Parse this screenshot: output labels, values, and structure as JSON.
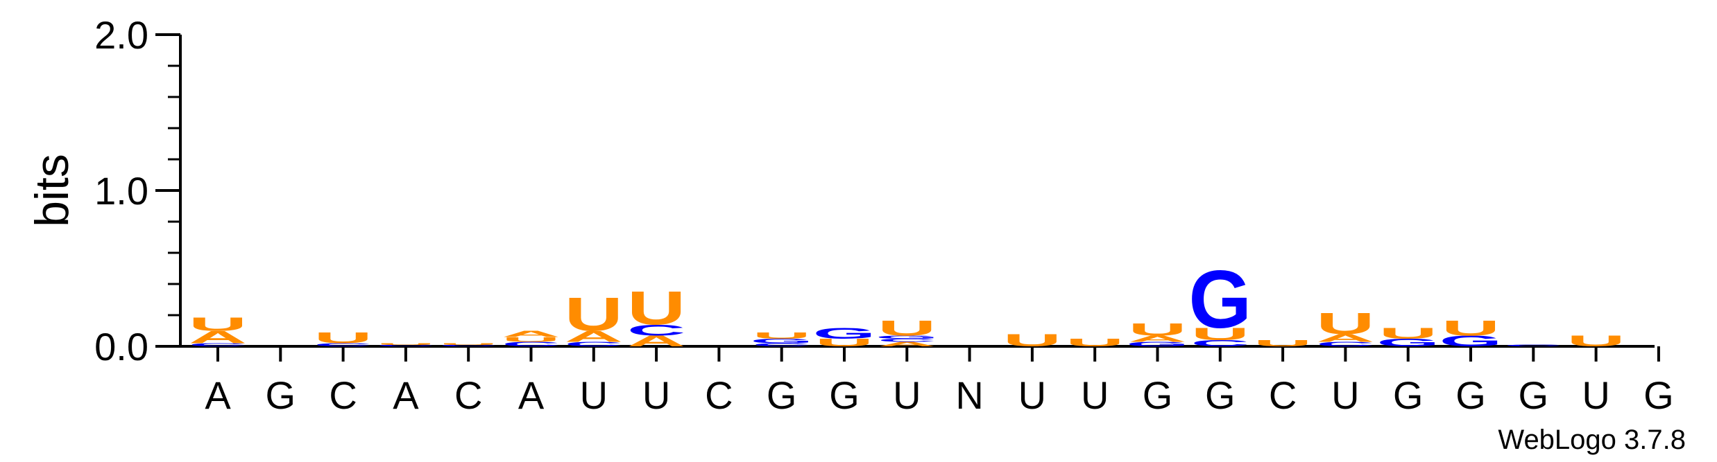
{
  "chart_data": {
    "type": "sequence-logo",
    "ylabel": "bits",
    "ylim": [
      0,
      2
    ],
    "yticks": [
      "0.0",
      "1.0",
      "2.0"
    ],
    "ytick_values": [
      0,
      1,
      2
    ],
    "credit": "WebLogo 3.7.8",
    "colors": {
      "A": "#ff8c00",
      "U": "#ff8c00",
      "G": "#0000ff",
      "C": "#0000ff",
      "N": "#ff8c00"
    },
    "positions": [
      {
        "label": "A",
        "stack": [
          {
            "letter": "C",
            "bits": 0.02
          },
          {
            "letter": "A",
            "bits": 0.08
          },
          {
            "letter": "U",
            "bits": 0.09
          }
        ]
      },
      {
        "label": "G",
        "stack": []
      },
      {
        "label": "C",
        "stack": [
          {
            "letter": "C",
            "bits": 0.02
          },
          {
            "letter": "U",
            "bits": 0.07
          }
        ]
      },
      {
        "label": "A",
        "stack": [
          {
            "letter": "C",
            "bits": 0.01
          },
          {
            "letter": "U",
            "bits": 0.01
          }
        ]
      },
      {
        "label": "C",
        "stack": [
          {
            "letter": "C",
            "bits": 0.01
          },
          {
            "letter": "U",
            "bits": 0.01
          }
        ]
      },
      {
        "label": "A",
        "stack": [
          {
            "letter": "C",
            "bits": 0.03
          },
          {
            "letter": "U",
            "bits": 0.03
          },
          {
            "letter": "A",
            "bits": 0.04
          }
        ]
      },
      {
        "label": "U",
        "stack": [
          {
            "letter": "C",
            "bits": 0.03
          },
          {
            "letter": "A",
            "bits": 0.07
          },
          {
            "letter": "U",
            "bits": 0.22
          }
        ]
      },
      {
        "label": "U",
        "stack": [
          {
            "letter": "A",
            "bits": 0.07
          },
          {
            "letter": "C",
            "bits": 0.07
          },
          {
            "letter": "U",
            "bits": 0.22
          }
        ]
      },
      {
        "label": "C",
        "stack": []
      },
      {
        "label": "G",
        "stack": [
          {
            "letter": "C",
            "bits": 0.02
          },
          {
            "letter": "G",
            "bits": 0.03
          },
          {
            "letter": "U",
            "bits": 0.04
          }
        ]
      },
      {
        "label": "G",
        "stack": [
          {
            "letter": "U",
            "bits": 0.05
          },
          {
            "letter": "G",
            "bits": 0.07
          }
        ]
      },
      {
        "label": "U",
        "stack": [
          {
            "letter": "A",
            "bits": 0.03
          },
          {
            "letter": "C",
            "bits": 0.02
          },
          {
            "letter": "G",
            "bits": 0.02
          },
          {
            "letter": "U",
            "bits": 0.1
          }
        ]
      },
      {
        "label": "N",
        "stack": []
      },
      {
        "label": "U",
        "stack": [
          {
            "letter": "U",
            "bits": 0.08
          }
        ]
      },
      {
        "label": "U",
        "stack": [
          {
            "letter": "U",
            "bits": 0.05
          }
        ]
      },
      {
        "label": "G",
        "stack": [
          {
            "letter": "G",
            "bits": 0.03
          },
          {
            "letter": "A",
            "bits": 0.04
          },
          {
            "letter": "U",
            "bits": 0.08
          }
        ]
      },
      {
        "label": "G",
        "stack": [
          {
            "letter": "C",
            "bits": 0.04
          },
          {
            "letter": "U",
            "bits": 0.08
          },
          {
            "letter": "G",
            "bits": 0.38
          }
        ]
      },
      {
        "label": "C",
        "stack": [
          {
            "letter": "U",
            "bits": 0.04
          }
        ]
      },
      {
        "label": "U",
        "stack": [
          {
            "letter": "C",
            "bits": 0.03
          },
          {
            "letter": "A",
            "bits": 0.05
          },
          {
            "letter": "U",
            "bits": 0.14
          }
        ]
      },
      {
        "label": "G",
        "stack": [
          {
            "letter": "G",
            "bits": 0.05
          },
          {
            "letter": "U",
            "bits": 0.07
          }
        ]
      },
      {
        "label": "G",
        "stack": [
          {
            "letter": "G",
            "bits": 0.07
          },
          {
            "letter": "U",
            "bits": 0.1
          }
        ]
      },
      {
        "label": "G",
        "stack": [
          {
            "letter": "C",
            "bits": 0.01
          }
        ]
      },
      {
        "label": "U",
        "stack": [
          {
            "letter": "U",
            "bits": 0.07
          }
        ]
      },
      {
        "label": "G",
        "stack": []
      }
    ]
  }
}
